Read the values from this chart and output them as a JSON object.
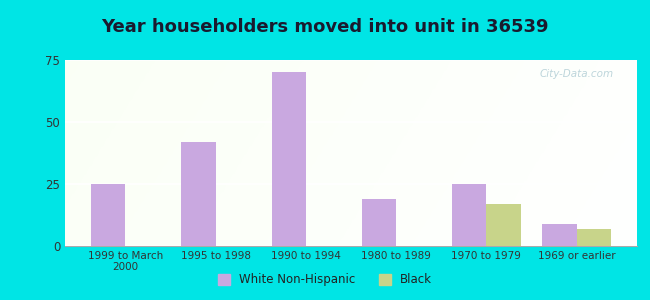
{
  "title": "Year householders moved into unit in 36539",
  "categories": [
    "1999 to March\n2000",
    "1995 to 1998",
    "1990 to 1994",
    "1980 to 1989",
    "1970 to 1979",
    "1969 or earlier"
  ],
  "white_values": [
    25,
    42,
    70,
    19,
    25,
    9
  ],
  "black_values": [
    0,
    0,
    0,
    0,
    17,
    7
  ],
  "white_color": "#c9a8e0",
  "black_color": "#c8d48a",
  "ylim": [
    0,
    75
  ],
  "yticks": [
    0,
    25,
    50,
    75
  ],
  "background_outer": "#00e5e5",
  "title_fontsize": 13,
  "bar_width": 0.38,
  "legend_labels": [
    "White Non-Hispanic",
    "Black"
  ],
  "watermark": "City-Data.com"
}
